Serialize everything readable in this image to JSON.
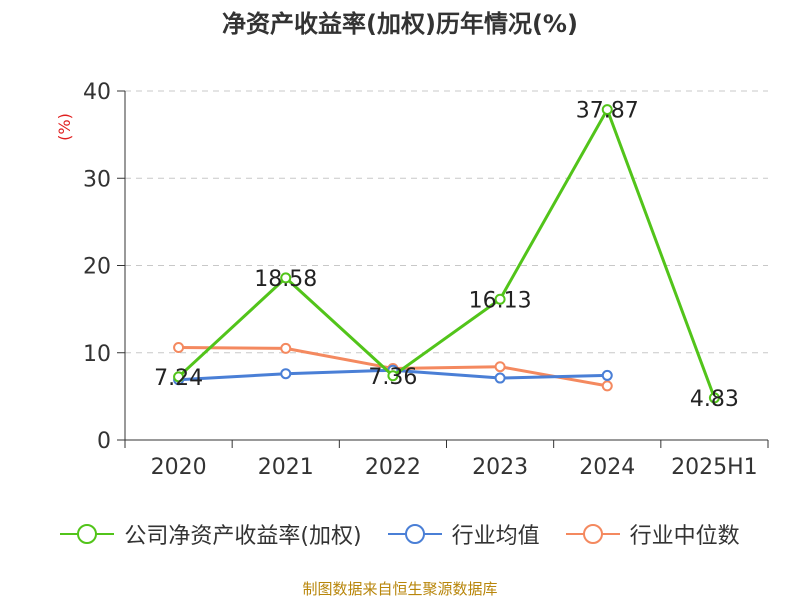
{
  "chart_data": {
    "type": "line",
    "title": "净资产收益率(加权)历年情况(%)",
    "ylabel": "(%)",
    "xlabel": "",
    "categories": [
      "2020",
      "2021",
      "2022",
      "2023",
      "2024",
      "2025H1"
    ],
    "ylim": [
      0,
      40
    ],
    "yticks": [
      "0",
      "10",
      "20",
      "30",
      "40"
    ],
    "grid": true,
    "legend_position": "bottom",
    "series": [
      {
        "name": "公司净资产收益率(加权)",
        "color": "#52c41a",
        "values": [
          7.24,
          18.58,
          7.36,
          16.13,
          37.87,
          4.83
        ],
        "labels": [
          "7.24",
          "18.58",
          "7.36",
          "16.13",
          "37.87",
          "4.83"
        ]
      },
      {
        "name": "行业均值",
        "color": "#4a7fd6",
        "values": [
          6.9,
          7.6,
          8.0,
          7.1,
          7.4,
          null
        ]
      },
      {
        "name": "行业中位数",
        "color": "#f4895f",
        "values": [
          10.6,
          10.5,
          8.2,
          8.4,
          6.2,
          null
        ]
      }
    ]
  },
  "footer": {
    "source": "制图数据来自恒生聚源数据库"
  }
}
